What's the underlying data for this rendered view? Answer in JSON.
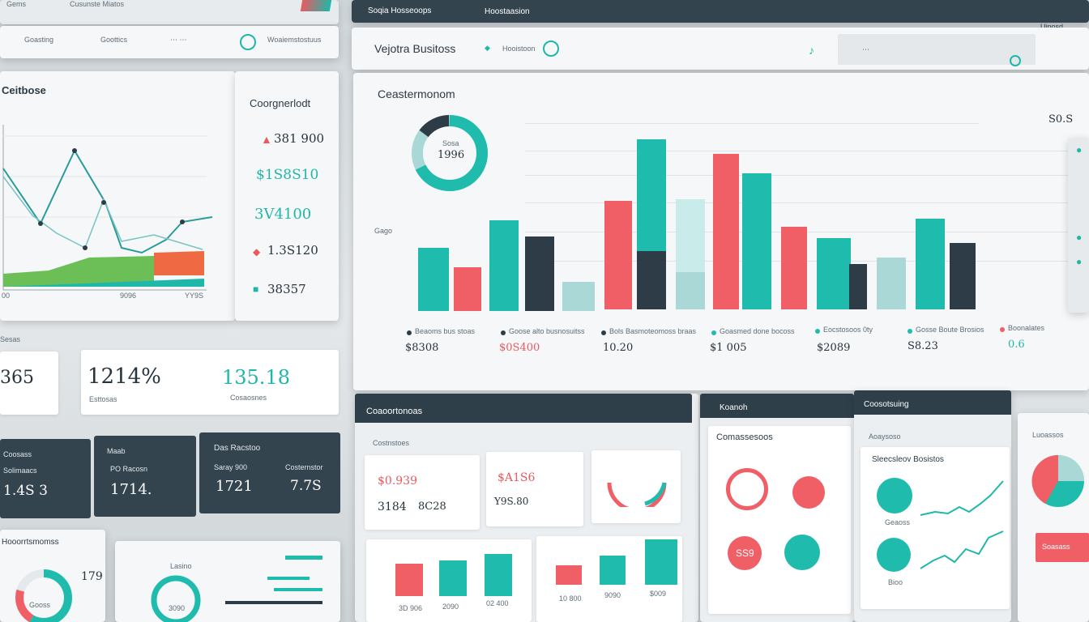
{
  "left_panel": {
    "header": {
      "title": "Cusunste Miatos",
      "brand": "Gems",
      "tab_a": "Goasting",
      "tab_b": "Goottics",
      "tab_right": "Woaiemstostuus"
    },
    "line_chart": {
      "title": "Ceitbose",
      "x_labels": [
        "00",
        "9096",
        "YY9S"
      ]
    },
    "side_values": {
      "title": "Coorgnerlodt",
      "values": [
        "381 900",
        "$1S8S10",
        "3V4100",
        "1.3S120",
        "38357"
      ]
    },
    "kpi_row": {
      "label": "Sesas",
      "values": [
        "365",
        "1214%",
        "135.18"
      ],
      "caption_a": "Esttosas",
      "caption_b": "Cosaosnes"
    },
    "dark_row": {
      "items": [
        {
          "label": "Coosass",
          "sublabel": "Solimaacs",
          "value": "1.4S 3"
        },
        {
          "label": "Maab",
          "sublabel": "PO Racosn",
          "value": "1714."
        },
        {
          "label": "Das Racstoo",
          "sublabel": "Saray 900",
          "value": "1721"
        },
        {
          "label": "Costernstor",
          "sublabel": "",
          "value": "7.7S"
        }
      ]
    },
    "bottom": {
      "title": "Hooorrtsmomss",
      "value": "179",
      "donut_label": "Gooss",
      "donut_inner": "3090",
      "label_b": "Lasino"
    }
  },
  "main_panel": {
    "header": {
      "title_a": "Soqia Hosseoops",
      "title_b": "Hoostaasion",
      "app_title": "Vejotra Busitoss",
      "tab": "Hooistoon",
      "right_label": "Uiposd"
    },
    "bar_chart": {
      "title": "Ceastermonom",
      "donut_value": "1996",
      "donut_label": "Sosa",
      "corner_value": "S0.S",
      "y_label": "Gago",
      "legend": [
        {
          "label": "Beaoms bus stoas",
          "value": "$8308"
        },
        {
          "label": "Goose alto busnosuitss",
          "value": "$0S400"
        },
        {
          "label": "Bols Basmoteomoss braas",
          "value": "10.20"
        },
        {
          "label": "Goasmed done bocoss",
          "value": "$1 005"
        },
        {
          "label": "Eocstosoos 0ty",
          "value": "$2089"
        },
        {
          "label": "Gosse Boute Brosios",
          "value": "S8.23"
        },
        {
          "label": "Boonalates",
          "value": "0.6"
        }
      ]
    },
    "lower_left": {
      "title": "Coaoortonoas",
      "subtitle": "Costnstoes",
      "values": [
        "$0.939",
        "$A1S6",
        "3184",
        "8C28",
        "Y9S.80"
      ],
      "bar_labels_a": [
        "3D 906",
        "2090",
        "02 400"
      ],
      "bar_labels_b": [
        "10 800",
        "9090",
        "$009"
      ]
    },
    "lower_mid": {
      "title": "Koanoh",
      "subtitle": "Comassesoos",
      "ring_value": "SS9"
    },
    "lower_right": {
      "title": "Coosotsuing",
      "subtitle": "Aoaysoso",
      "heading": "Sleecsleov Bosistos",
      "label_a": "Geaoss",
      "label_b": "Bioo"
    },
    "far_right": {
      "title": "Luoassos",
      "button": "Soasass"
    }
  }
}
